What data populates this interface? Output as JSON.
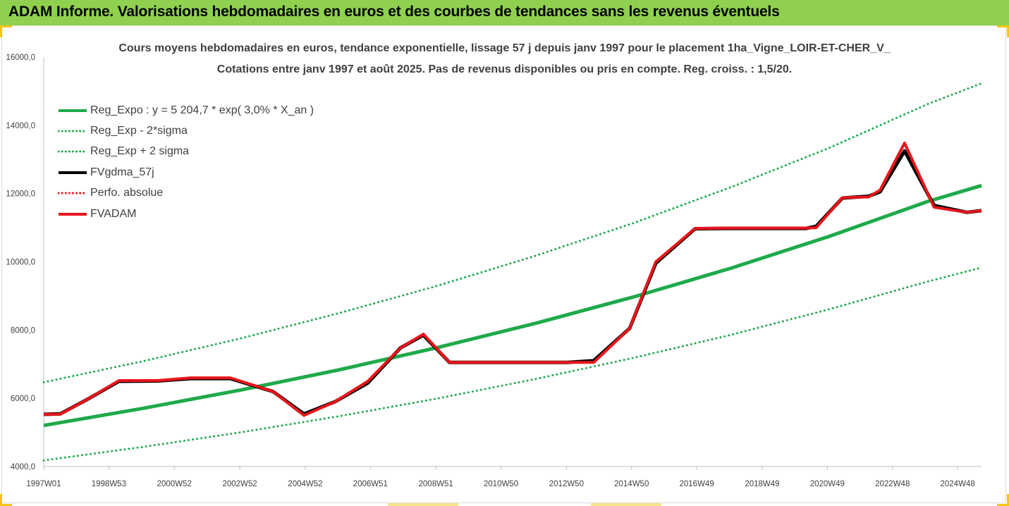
{
  "banner": {
    "title": "ADAM Informe. Valorisations hebdomadaires en euros et des courbes de tendances sans les revenus éventuels"
  },
  "chart_data": {
    "type": "line",
    "title_line1": "Cours moyens hebdomadaires en euros, tendance exponentielle, lissage 57 j depuis janv 1997 pour le placement 1ha_Vigne_LOIR-ET-CHER_V_",
    "title_line2": "Cotations entre janv 1997 et août 2025.  Pas de revenus disponibles ou pris en compte. Reg. croiss. : 1,5/20.",
    "xlabel": "",
    "ylabel": "",
    "ylim": [
      4000,
      16000
    ],
    "yticks": [
      4000,
      6000,
      8000,
      10000,
      12000,
      14000,
      16000
    ],
    "ytick_labels": [
      "4000,0",
      "6000,0",
      "8000,0",
      "10000,0",
      "12000,0",
      "14000,0",
      "16000,0"
    ],
    "xlim": [
      1997.0,
      2025.65
    ],
    "xtick_labels": [
      "1997W01",
      "1998W53",
      "2000W52",
      "2002W52",
      "2004W52",
      "2006W51",
      "2008W51",
      "2010W50",
      "2012W50",
      "2014W50",
      "2016W49",
      "2018W49",
      "2020W49",
      "2022W48",
      "2024W48"
    ],
    "xtick_years": [
      1997.0,
      1998.99,
      2000.99,
      2002.99,
      2004.99,
      2006.98,
      2008.98,
      2010.97,
      2012.97,
      2014.96,
      2016.95,
      2018.95,
      2020.94,
      2022.93,
      2024.92
    ],
    "grid": false,
    "legend_position": "top-left",
    "series": [
      {
        "name": "Reg_Expo : y = 5 204,7 * exp( 3,0% *  X_an )",
        "color": "#1faa4a",
        "style": "solid",
        "width": 5,
        "x": [
          1997.0,
          2000.0,
          2003.0,
          2006.0,
          2009.0,
          2012.0,
          2015.0,
          2018.0,
          2021.0,
          2024.0,
          2025.65
        ],
        "y": [
          5205,
          5700,
          6239,
          6830,
          7480,
          8190,
          8965,
          9815,
          10746,
          11766,
          12234
        ]
      },
      {
        "name": "Reg_Exp - 2*sigma",
        "color": "#1faa4a",
        "style": "dotted",
        "width": 3,
        "x": [
          1997.0,
          2000.0,
          2003.0,
          2006.0,
          2009.0,
          2012.0,
          2015.0,
          2018.0,
          2021.0,
          2024.0,
          2025.65
        ],
        "y": [
          4180,
          4570,
          5000,
          5470,
          5990,
          6560,
          7180,
          7860,
          8610,
          9420,
          9830
        ]
      },
      {
        "name": "Reg_Exp + 2 sigma",
        "color": "#1faa4a",
        "style": "dotted",
        "width": 3,
        "x": [
          1997.0,
          2000.0,
          2003.0,
          2006.0,
          2009.0,
          2012.0,
          2015.0,
          2018.0,
          2021.0,
          2024.0,
          2025.65
        ],
        "y": [
          6470,
          7080,
          7750,
          8490,
          9290,
          10170,
          11130,
          12190,
          13340,
          14620,
          15230
        ]
      },
      {
        "name": "FVgdma_57j",
        "color": "#000000",
        "style": "solid",
        "width": 5,
        "x": [
          1997.0,
          1997.5,
          1998.3,
          1999.3,
          2000.5,
          2001.5,
          2002.7,
          2004.0,
          2004.95,
          2005.9,
          2006.9,
          2007.9,
          2008.6,
          2009.4,
          2010.3,
          2011.5,
          2013.0,
          2013.8,
          2014.9,
          2015.7,
          2016.9,
          2017.8,
          2019.0,
          2020.3,
          2020.6,
          2021.4,
          2022.2,
          2022.55,
          2023.3,
          2024.2,
          2025.2,
          2025.65
        ],
        "y": [
          5530,
          5540,
          5950,
          6500,
          6510,
          6580,
          6580,
          6200,
          5540,
          5900,
          6450,
          7480,
          7850,
          7050,
          7050,
          7050,
          7050,
          7100,
          8050,
          9960,
          10970,
          10980,
          10980,
          10980,
          11040,
          11870,
          11920,
          12050,
          13250,
          11650,
          11450,
          11500
        ]
      },
      {
        "name": "Perfo. absolue",
        "color": "#e8151b",
        "style": "dotted",
        "width": 3,
        "x": [],
        "y": []
      },
      {
        "name": "FVADAM",
        "color": "#e8151b",
        "style": "solid",
        "width": 4,
        "x": [
          1997.0,
          1997.5,
          1998.3,
          1999.3,
          2000.5,
          2001.5,
          2002.7,
          2004.0,
          2004.95,
          2005.9,
          2006.9,
          2007.9,
          2008.6,
          2009.4,
          2010.3,
          2011.5,
          2013.0,
          2013.8,
          2014.9,
          2015.7,
          2016.9,
          2017.8,
          2019.0,
          2020.3,
          2020.6,
          2021.4,
          2022.2,
          2022.55,
          2023.3,
          2024.2,
          2025.2,
          2025.65
        ],
        "y": [
          5530,
          5530,
          5950,
          6520,
          6520,
          6600,
          6600,
          6200,
          5500,
          5900,
          6500,
          7480,
          7880,
          7050,
          7050,
          7050,
          7050,
          7050,
          8050,
          10000,
          10980,
          10990,
          10990,
          10990,
          11000,
          11880,
          11900,
          12100,
          13480,
          11600,
          11450,
          11500
        ]
      }
    ]
  }
}
